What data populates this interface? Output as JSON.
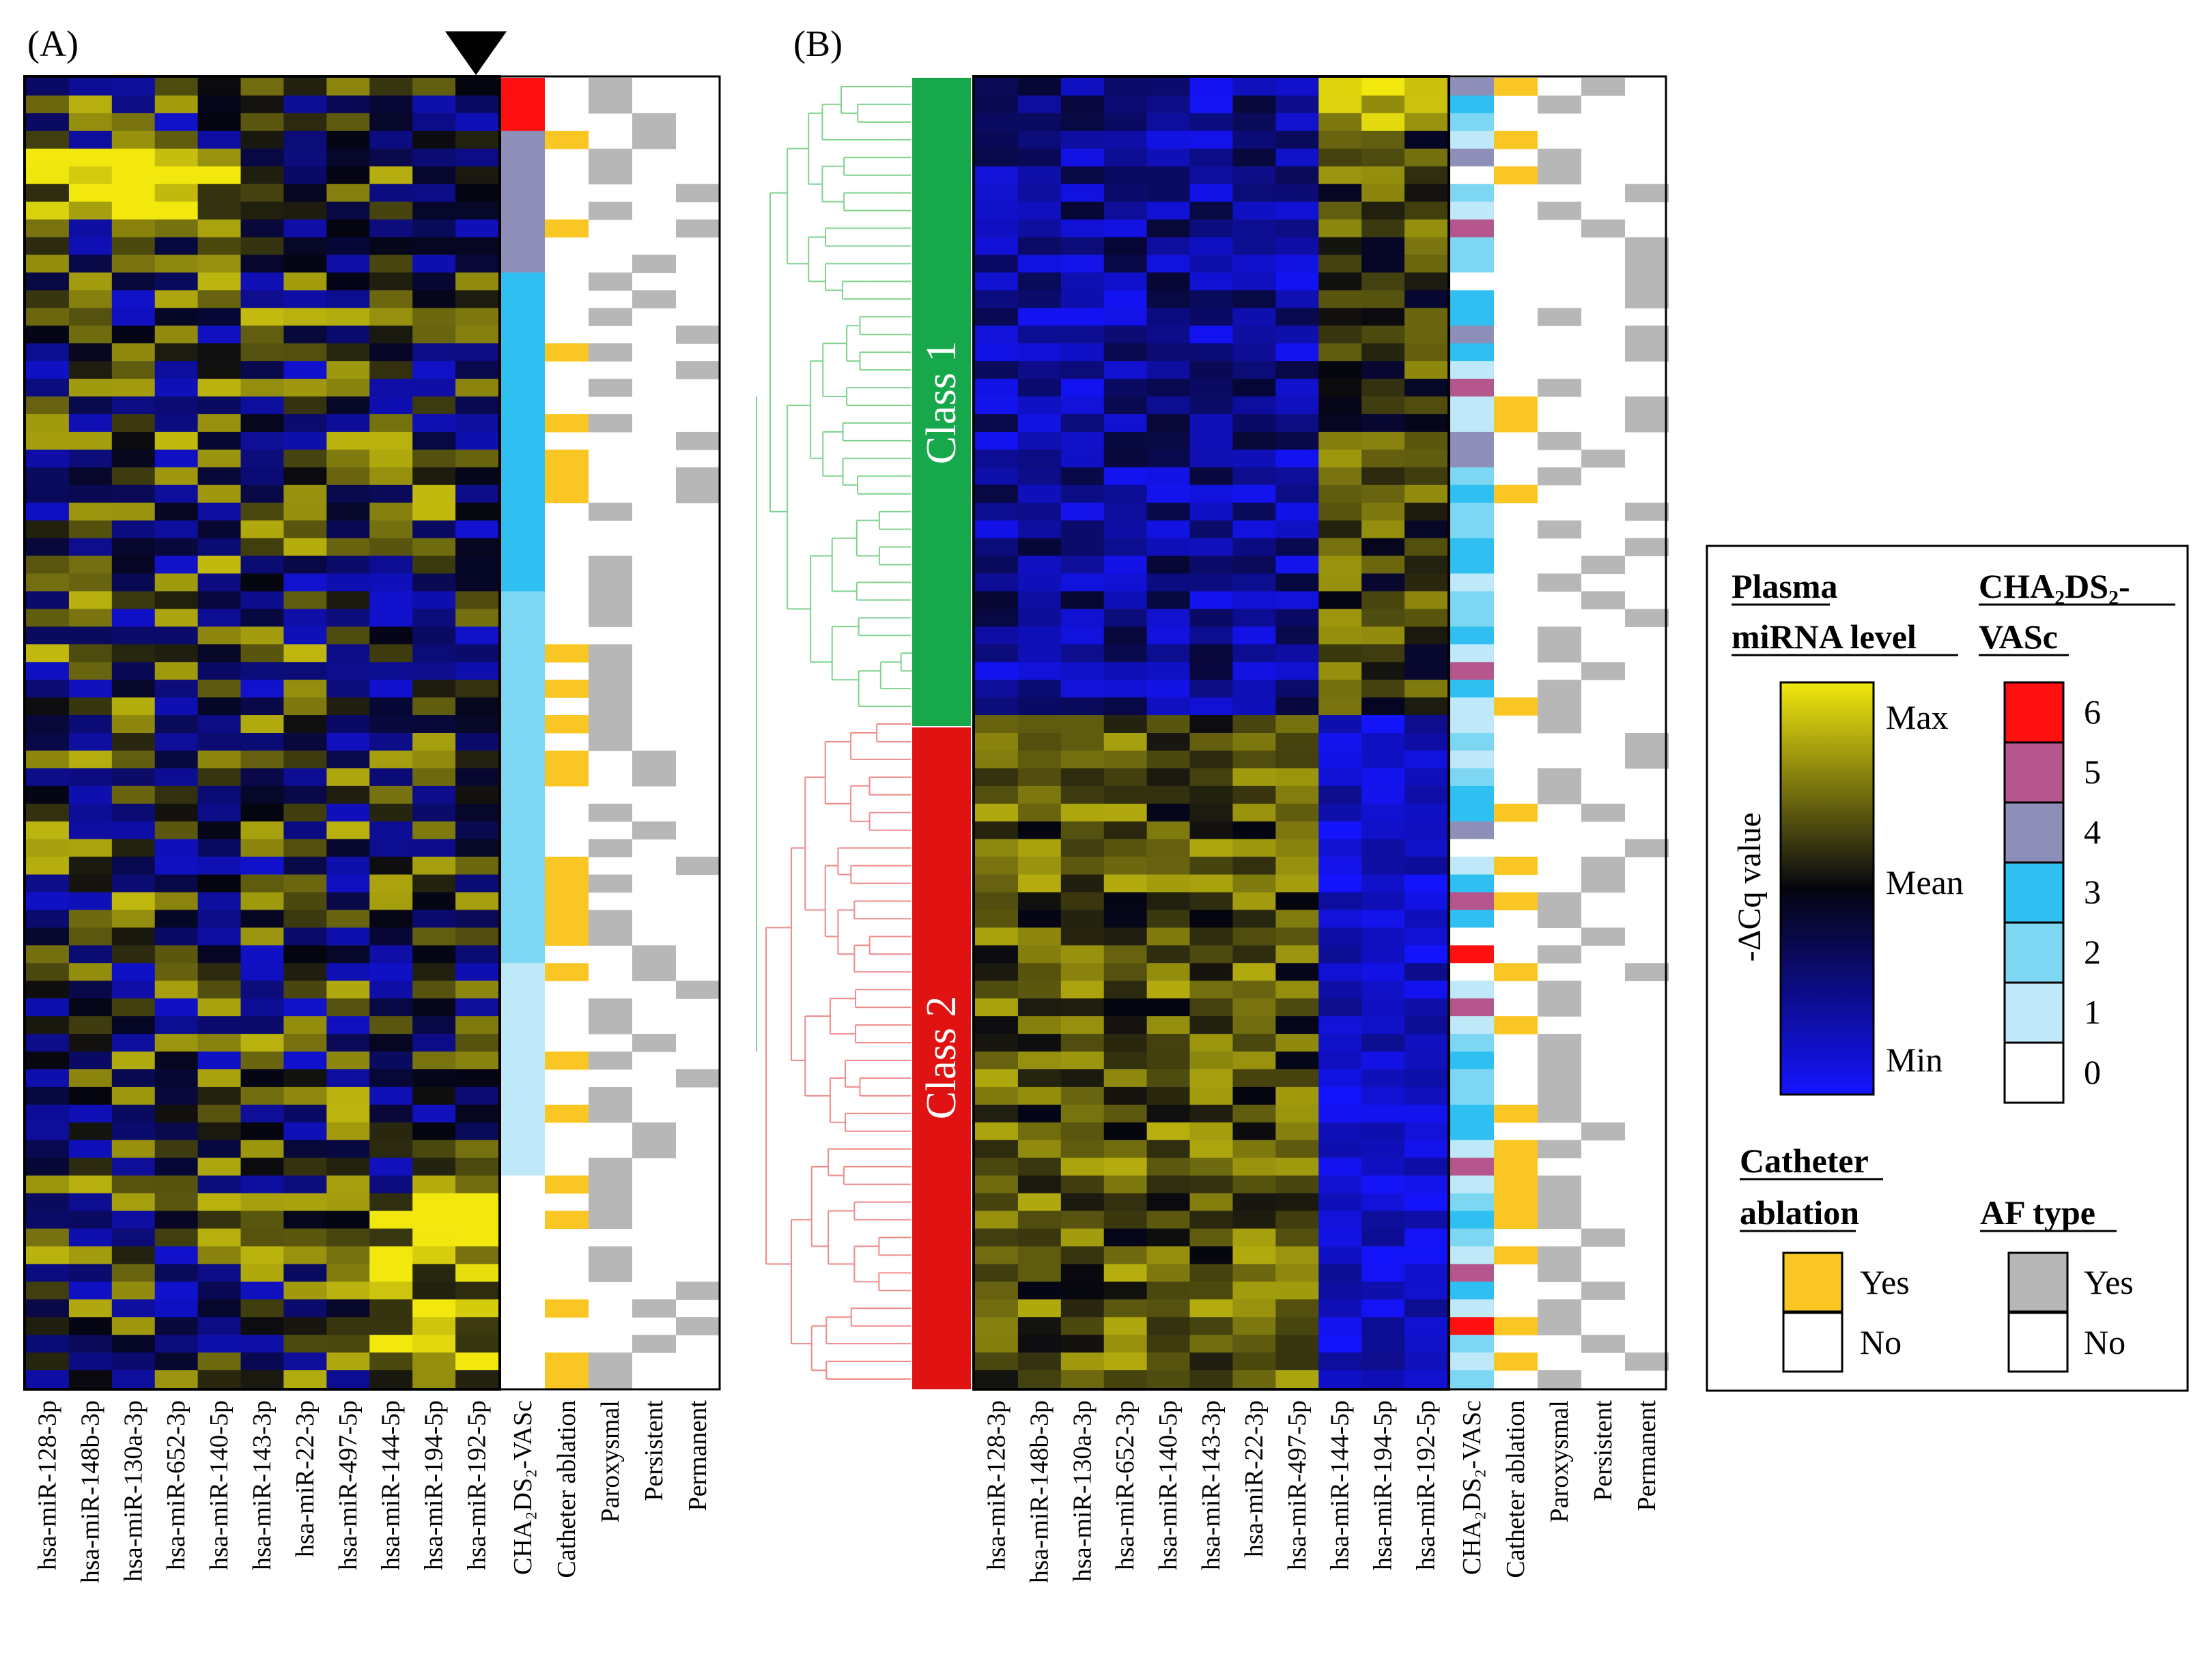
{
  "panel_labels": {
    "a": "(A)",
    "b": "(B)"
  },
  "colors": {
    "min": "#1414ff",
    "mid": "#05050f",
    "max": "#f2e80e",
    "ablation_yes": "#f9c623",
    "af_yes": "#b7b7b7",
    "no": "#ffffff",
    "class1": "#16a84a",
    "class2": "#e01212",
    "dendro_class1": "#7fd28f",
    "dendro_class2": "#f08a8a",
    "cha_scale": [
      "#ffffff",
      "#bfe9f8",
      "#7dd7f3",
      "#2fbff0",
      "#8e8fb8",
      "#b5568c",
      "#ff1010"
    ]
  },
  "legend": {
    "mirna_title": [
      "Plasma",
      "miRNA level"
    ],
    "cha_title_line1": "CHA₂DS₂-",
    "cha_title_line2": "VASc",
    "colorbar_axis": "-ΔCq value",
    "colorbar_ticks": [
      "Max",
      "Mean",
      "Min"
    ],
    "cha_levels": [
      "6",
      "5",
      "4",
      "3",
      "2",
      "1",
      "0"
    ],
    "ablation_title": [
      "Catheter",
      "ablation"
    ],
    "aftype_title": "AF type",
    "yes": "Yes",
    "no": "No"
  },
  "chart_data": [
    {
      "type": "heatmap",
      "panel": "(A)",
      "columns": [
        "hsa-miR-128-3p",
        "hsa-miR-148b-3p",
        "hsa-miR-130a-3p",
        "hsa-miR-652-3p",
        "hsa-miR-140-5p",
        "hsa-miR-143-3p",
        "hsa-miR-22-3p",
        "hsa-miR-497-5p",
        "hsa-miR-144-5p",
        "hsa-miR-194-5p",
        "hsa-miR-192-5p"
      ],
      "annotation_columns": [
        "CHA₂DS₂-VASc",
        "Catheter ablation",
        "Paroxysmal",
        "Persistent",
        "Permanent"
      ],
      "value_scale": [
        "Min",
        "Mean",
        "Max"
      ],
      "n_rows": 74,
      "row_order": "sorted by CHA2DS2-VASc score (6 to 0)",
      "cha2ds2_vasc_groups": [
        {
          "score": 6,
          "n": 3
        },
        {
          "score": 4,
          "n": 8
        },
        {
          "score": 3,
          "n": 18
        },
        {
          "score": 2,
          "n": 21
        },
        {
          "score": 1,
          "n": 12
        },
        {
          "score": 0,
          "n": 12
        }
      ],
      "marker": "triangle above hsa-miR-192-5p"
    },
    {
      "type": "heatmap",
      "panel": "(B)",
      "columns": [
        "hsa-miR-128-3p",
        "hsa-miR-148b-3p",
        "hsa-miR-130a-3p",
        "hsa-miR-652-3p",
        "hsa-miR-140-5p",
        "hsa-miR-143-3p",
        "hsa-miR-22-3p",
        "hsa-miR-497-5p",
        "hsa-miR-144-5p",
        "hsa-miR-194-5p",
        "hsa-miR-192-5p"
      ],
      "annotation_columns": [
        "CHA₂DS₂-VASc",
        "Catheter ablation",
        "Paroxysmal",
        "Persistent",
        "Permanent"
      ],
      "value_scale": [
        "Min",
        "Mean",
        "Max"
      ],
      "n_rows": 74,
      "row_order": "hierarchical clustering",
      "clusters": [
        {
          "name": "Class 1",
          "n": 36
        },
        {
          "name": "Class 2",
          "n": 38
        }
      ]
    }
  ]
}
